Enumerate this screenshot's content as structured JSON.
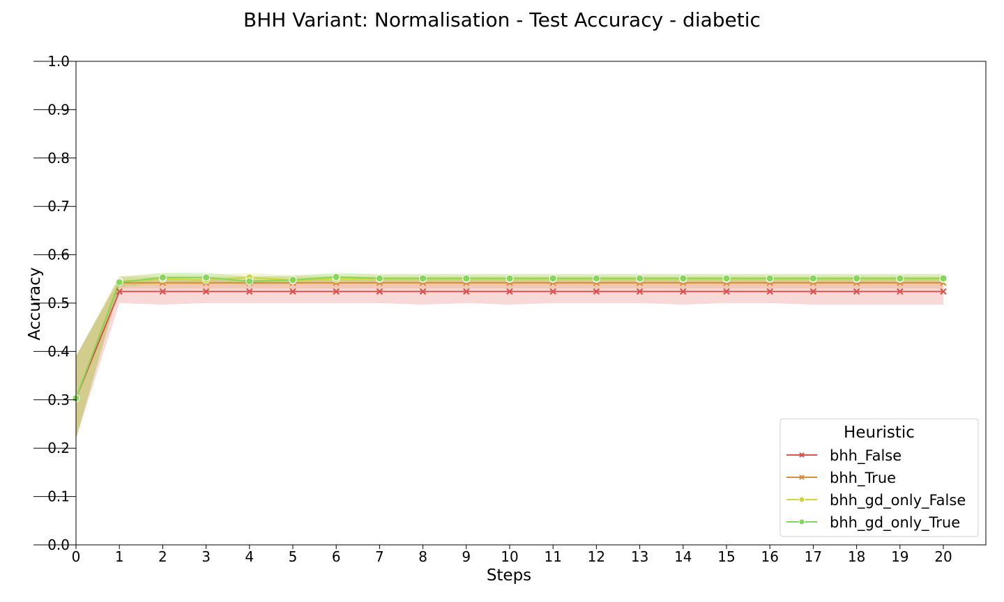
{
  "chart_data": {
    "type": "line",
    "title": "BHH Variant: Normalisation - Test Accuracy - diabetic",
    "xlabel": "Steps",
    "ylabel": "Accuracy",
    "xlim": [
      0,
      21
    ],
    "ylim": [
      0.0,
      1.0
    ],
    "x": [
      0,
      1,
      2,
      3,
      4,
      5,
      6,
      7,
      8,
      9,
      10,
      11,
      12,
      13,
      14,
      15,
      16,
      17,
      18,
      19,
      20
    ],
    "xticks": [
      "0",
      "1",
      "2",
      "3",
      "4",
      "5",
      "6",
      "7",
      "8",
      "9",
      "10",
      "11",
      "12",
      "13",
      "14",
      "15",
      "16",
      "17",
      "18",
      "19",
      "20"
    ],
    "yticks": [
      "0.0",
      "0.1",
      "0.2",
      "0.3",
      "0.4",
      "0.5",
      "0.6",
      "0.7",
      "0.8",
      "0.9",
      "1.0"
    ],
    "grid": false,
    "legend": {
      "title": "Heuristic",
      "position": "bottom-right"
    },
    "series": [
      {
        "name": "bhh_False",
        "color": "#d9534f",
        "marker": "x",
        "values": [
          0.303,
          0.524,
          0.524,
          0.524,
          0.524,
          0.524,
          0.524,
          0.524,
          0.524,
          0.524,
          0.524,
          0.524,
          0.524,
          0.524,
          0.524,
          0.524,
          0.524,
          0.524,
          0.524,
          0.524,
          0.524
        ],
        "lower": [
          0.22,
          0.5,
          0.497,
          0.5,
          0.5,
          0.5,
          0.5,
          0.5,
          0.497,
          0.5,
          0.497,
          0.5,
          0.5,
          0.5,
          0.497,
          0.5,
          0.5,
          0.497,
          0.497,
          0.497,
          0.497
        ],
        "upper": [
          0.39,
          0.548,
          0.548,
          0.548,
          0.548,
          0.548,
          0.548,
          0.548,
          0.548,
          0.548,
          0.548,
          0.548,
          0.548,
          0.548,
          0.548,
          0.548,
          0.548,
          0.548,
          0.548,
          0.548,
          0.548
        ]
      },
      {
        "name": "bhh_True",
        "color": "#d98c3c",
        "marker": "x",
        "values": [
          0.303,
          0.542,
          0.542,
          0.542,
          0.542,
          0.542,
          0.542,
          0.542,
          0.542,
          0.542,
          0.542,
          0.542,
          0.542,
          0.542,
          0.542,
          0.542,
          0.542,
          0.542,
          0.542,
          0.542,
          0.542
        ],
        "lower": [
          0.22,
          0.53,
          0.53,
          0.53,
          0.53,
          0.53,
          0.53,
          0.53,
          0.53,
          0.53,
          0.53,
          0.53,
          0.53,
          0.53,
          0.53,
          0.53,
          0.53,
          0.53,
          0.53,
          0.53,
          0.53
        ],
        "upper": [
          0.39,
          0.555,
          0.555,
          0.555,
          0.555,
          0.555,
          0.555,
          0.555,
          0.555,
          0.555,
          0.555,
          0.555,
          0.555,
          0.555,
          0.555,
          0.555,
          0.555,
          0.555,
          0.555,
          0.555,
          0.555
        ]
      },
      {
        "name": "bhh_gd_only_False",
        "color": "#cfd63a",
        "marker": "o",
        "values": [
          0.303,
          0.545,
          0.55,
          0.548,
          0.553,
          0.547,
          0.55,
          0.55,
          0.55,
          0.55,
          0.55,
          0.55,
          0.55,
          0.55,
          0.55,
          0.55,
          0.55,
          0.55,
          0.55,
          0.55,
          0.55
        ],
        "lower": [
          0.22,
          0.535,
          0.538,
          0.538,
          0.54,
          0.538,
          0.54,
          0.54,
          0.54,
          0.54,
          0.54,
          0.54,
          0.54,
          0.54,
          0.54,
          0.54,
          0.54,
          0.54,
          0.54,
          0.54,
          0.54
        ],
        "upper": [
          0.39,
          0.556,
          0.562,
          0.56,
          0.562,
          0.558,
          0.56,
          0.56,
          0.56,
          0.56,
          0.56,
          0.56,
          0.56,
          0.56,
          0.56,
          0.56,
          0.56,
          0.56,
          0.56,
          0.56,
          0.56
        ]
      },
      {
        "name": "bhh_gd_only_True",
        "color": "#86d65a",
        "marker": "o",
        "values": [
          0.303,
          0.543,
          0.553,
          0.553,
          0.545,
          0.548,
          0.554,
          0.551,
          0.551,
          0.551,
          0.551,
          0.551,
          0.551,
          0.551,
          0.551,
          0.551,
          0.551,
          0.551,
          0.551,
          0.551,
          0.551
        ],
        "lower": [
          0.22,
          0.533,
          0.543,
          0.543,
          0.537,
          0.54,
          0.545,
          0.543,
          0.543,
          0.543,
          0.543,
          0.543,
          0.543,
          0.543,
          0.543,
          0.543,
          0.543,
          0.543,
          0.543,
          0.543,
          0.543
        ],
        "upper": [
          0.39,
          0.553,
          0.563,
          0.563,
          0.555,
          0.557,
          0.563,
          0.56,
          0.56,
          0.56,
          0.56,
          0.56,
          0.56,
          0.56,
          0.56,
          0.56,
          0.56,
          0.56,
          0.56,
          0.56,
          0.56
        ]
      }
    ]
  }
}
